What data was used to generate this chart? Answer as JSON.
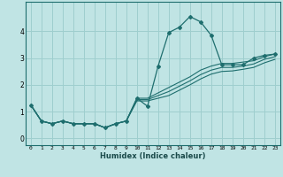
{
  "xlabel": "Humidex (Indice chaleur)",
  "bg_color": "#c0e4e4",
  "grid_color": "#9ecece",
  "line_color": "#1e6e6e",
  "x_ticks": [
    0,
    1,
    2,
    3,
    4,
    5,
    6,
    7,
    8,
    9,
    10,
    11,
    12,
    13,
    14,
    15,
    16,
    17,
    18,
    19,
    20,
    21,
    22,
    23
  ],
  "y_ticks": [
    0,
    1,
    2,
    3,
    4
  ],
  "xlim": [
    -0.5,
    23.5
  ],
  "ylim": [
    -0.25,
    5.1
  ],
  "curves": [
    {
      "x": [
        0,
        1,
        2,
        3,
        4,
        5,
        6,
        7,
        8,
        9,
        10,
        11,
        12,
        13,
        14,
        15,
        16,
        17,
        18,
        19,
        20,
        21,
        22,
        23
      ],
      "y": [
        1.25,
        0.65,
        0.55,
        0.65,
        0.55,
        0.55,
        0.55,
        0.4,
        0.55,
        0.65,
        1.5,
        1.2,
        2.7,
        3.95,
        4.15,
        4.55,
        4.35,
        3.85,
        2.75,
        2.75,
        2.75,
        3.0,
        3.1,
        3.15
      ],
      "with_markers": true
    },
    {
      "x": [
        0,
        1,
        2,
        3,
        4,
        5,
        6,
        7,
        8,
        9,
        10,
        11,
        12,
        13,
        14,
        15,
        16,
        17,
        18,
        19,
        20,
        21,
        22,
        23
      ],
      "y": [
        1.25,
        0.65,
        0.55,
        0.65,
        0.55,
        0.55,
        0.55,
        0.4,
        0.55,
        0.65,
        1.5,
        1.5,
        1.7,
        1.9,
        2.1,
        2.3,
        2.55,
        2.7,
        2.8,
        2.8,
        2.85,
        2.9,
        3.05,
        3.15
      ],
      "with_markers": false
    },
    {
      "x": [
        0,
        1,
        2,
        3,
        4,
        5,
        6,
        7,
        8,
        9,
        10,
        11,
        12,
        13,
        14,
        15,
        16,
        17,
        18,
        19,
        20,
        21,
        22,
        23
      ],
      "y": [
        1.25,
        0.65,
        0.55,
        0.65,
        0.55,
        0.55,
        0.55,
        0.4,
        0.55,
        0.65,
        1.45,
        1.45,
        1.6,
        1.75,
        1.95,
        2.15,
        2.38,
        2.55,
        2.65,
        2.65,
        2.7,
        2.78,
        2.95,
        3.05
      ],
      "with_markers": false
    },
    {
      "x": [
        0,
        1,
        2,
        3,
        4,
        5,
        6,
        7,
        8,
        9,
        10,
        11,
        12,
        13,
        14,
        15,
        16,
        17,
        18,
        19,
        20,
        21,
        22,
        23
      ],
      "y": [
        1.25,
        0.65,
        0.55,
        0.65,
        0.55,
        0.55,
        0.55,
        0.4,
        0.55,
        0.65,
        1.4,
        1.4,
        1.5,
        1.6,
        1.8,
        2.0,
        2.22,
        2.4,
        2.5,
        2.52,
        2.58,
        2.65,
        2.82,
        2.95
      ],
      "with_markers": false
    }
  ]
}
